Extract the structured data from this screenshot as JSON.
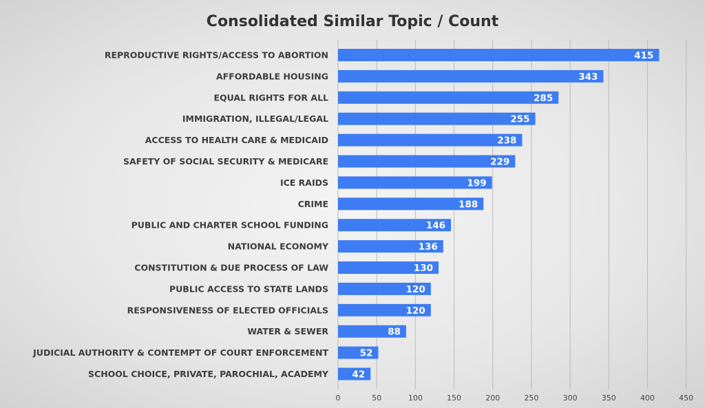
{
  "chart_data": {
    "type": "bar",
    "orientation": "horizontal",
    "title": "Consolidated Similar Topic / Count",
    "categories": [
      "REPRODUCTIVE RIGHTS/ACCESS TO ABORTION",
      "AFFORDABLE HOUSING",
      "EQUAL RIGHTS FOR ALL",
      "IMMIGRATION, ILLEGAL/LEGAL",
      "ACCESS TO HEALTH CARE & MEDICAID",
      "SAFETY OF SOCIAL SECURITY & MEDICARE",
      "ICE RAIDS",
      "CRIME",
      "PUBLIC AND CHARTER SCHOOL FUNDING",
      "NATIONAL ECONOMY",
      "CONSTITUTION & DUE PROCESS OF LAW",
      "PUBLIC ACCESS TO STATE LANDS",
      "RESPONSIVENESS OF ELECTED OFFICIALS",
      "WATER & SEWER",
      "JUDICIAL AUTHORITY & CONTEMPT OF COURT ENFORCEMENT",
      "SCHOOL CHOICE, PRIVATE, PAROCHIAL, ACADEMY"
    ],
    "values": [
      415,
      343,
      285,
      255,
      238,
      229,
      199,
      188,
      146,
      136,
      130,
      120,
      120,
      88,
      52,
      42
    ],
    "xlim": [
      0,
      450
    ],
    "xticks": [
      0,
      50,
      100,
      150,
      200,
      250,
      300,
      350,
      400,
      450
    ],
    "xlabel": "",
    "ylabel": "",
    "grid": true,
    "legend": "none",
    "data_labels": "inside-end",
    "colors": {
      "bar": "#3d7cf2",
      "label": "#ffffff",
      "title": "#333333",
      "category_text": "#3c3c3c",
      "grid": "#b9b9b9"
    }
  }
}
